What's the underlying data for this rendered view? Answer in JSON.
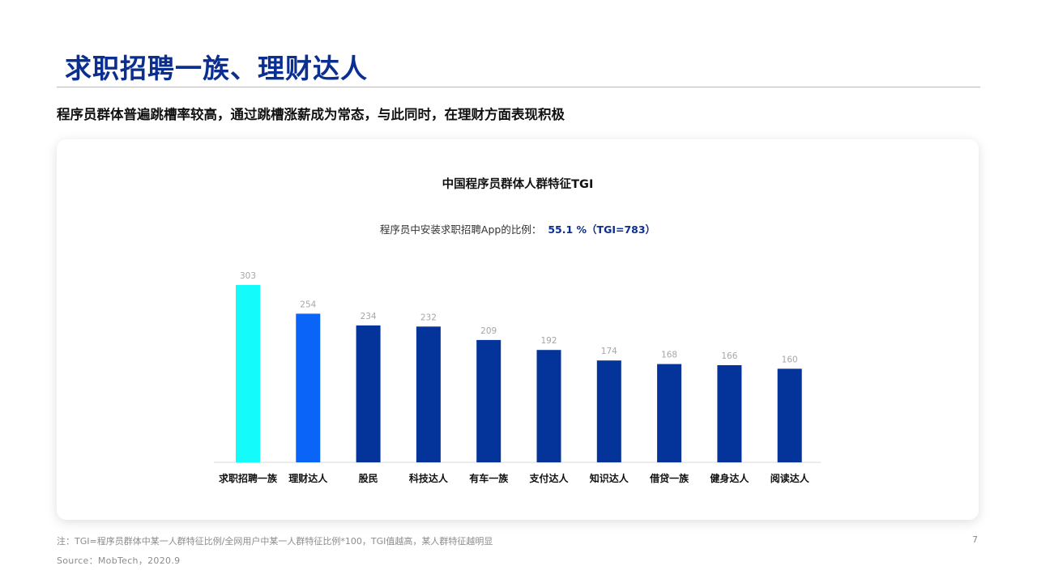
{
  "slide": {
    "title": "求职招聘一族、理财达人",
    "subtitle": "程序员群体普遍跳槽率较高，通过跳槽涨薪成为常态，与此同时，在理财方面表现积极",
    "footnote": "注：TGI=程序员群体中某一人群特征比例/全网用户中某一人群特征比例*100，TGI值越高，某人群特征越明显",
    "source": "Source：MobTech，2020.9",
    "page_number": "7"
  },
  "chart_data": {
    "type": "bar",
    "title": "中国程序员群体人群特征TGI",
    "annotation_prefix": "程序员中安装求职招聘App的比例：",
    "annotation_value": "55.1 %（TGI=783）",
    "categories": [
      "求职招聘一族",
      "理财达人",
      "股民",
      "科技达人",
      "有车一族",
      "支付达人",
      "知识达人",
      "借贷一族",
      "健身达人",
      "阅读达人"
    ],
    "values": [
      303,
      254,
      234,
      232,
      209,
      192,
      174,
      168,
      166,
      160
    ],
    "bar_colors": [
      "#13fbfb",
      "#0a64f8",
      "#04339a",
      "#04339a",
      "#04339a",
      "#04339a",
      "#04339a",
      "#04339a",
      "#04339a",
      "#04339a"
    ],
    "ylim": [
      0,
      303
    ],
    "xlabel": "",
    "ylabel": "",
    "grid": false,
    "colors": {
      "title_blue": "#0b2f91",
      "annotation_blue": "#0b2f91",
      "value_label": "#a6a6a6",
      "axis": "#d9d9d9"
    }
  }
}
